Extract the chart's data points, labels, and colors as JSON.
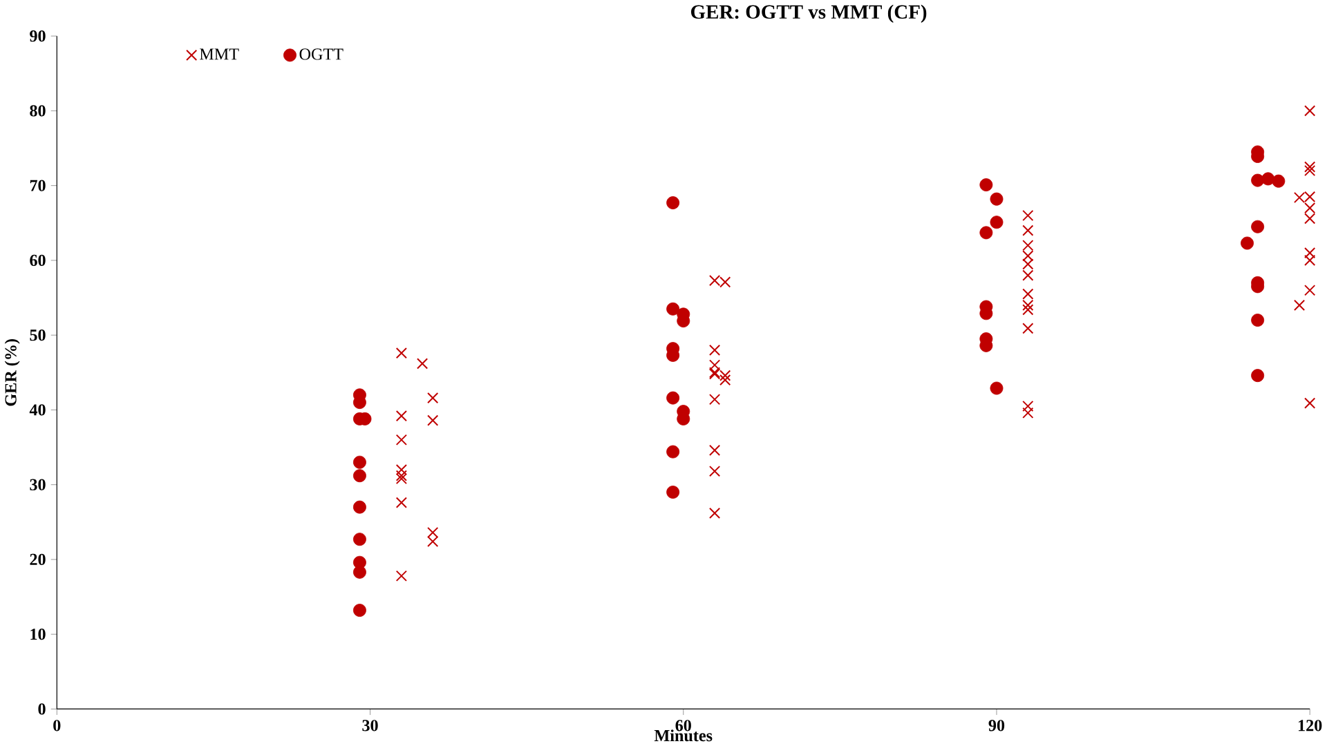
{
  "chart_data": {
    "type": "scatter",
    "title": "GER: OGTT vs MMT (CF)",
    "xlabel": "Minutes",
    "ylabel": "GER (%)",
    "xlim": [
      0,
      120
    ],
    "ylim": [
      0,
      90
    ],
    "xticks": [
      0,
      30,
      60,
      90,
      120
    ],
    "yticks": [
      0,
      10,
      20,
      30,
      40,
      50,
      60,
      70,
      80,
      90
    ],
    "legend": "top left",
    "grid": false,
    "series": [
      {
        "name": "MMT",
        "color": "#c00000",
        "marker": "cross",
        "x": [
          33,
          33,
          33,
          33,
          33,
          33,
          33,
          33,
          35,
          36,
          36,
          36,
          36,
          63,
          63,
          63,
          63,
          63,
          63,
          63,
          63,
          63,
          64,
          64,
          64,
          93,
          93,
          93,
          93,
          93,
          93,
          93,
          93,
          93,
          93,
          93,
          93,
          119,
          119,
          120,
          120,
          120,
          120,
          120,
          120,
          120,
          120,
          120,
          120
        ],
        "values": [
          47.6,
          39.2,
          36,
          32,
          31.2,
          30.8,
          27.6,
          17.8,
          46.2,
          41.6,
          38.6,
          23.6,
          22.4,
          57.3,
          48,
          46,
          45,
          44.8,
          41.4,
          34.6,
          31.8,
          26.2,
          57.1,
          44.6,
          44,
          66,
          64,
          62,
          60.6,
          59.5,
          58,
          55.5,
          54,
          53.4,
          50.9,
          40.5,
          39.6,
          68.4,
          54,
          80,
          72.5,
          72,
          68.5,
          67,
          65.6,
          61,
          60,
          56,
          40.9
        ]
      },
      {
        "name": "OGTT",
        "color": "#c00000",
        "marker": "circle",
        "x": [
          29,
          29,
          29,
          29.5,
          29,
          29,
          29,
          29,
          29,
          29,
          29,
          59,
          59,
          59,
          59,
          59,
          59,
          59,
          60,
          60,
          60,
          60,
          89,
          89,
          89,
          89,
          89,
          89,
          90,
          90,
          90,
          114,
          115,
          115,
          115,
          115,
          115,
          115,
          115,
          115,
          116,
          117
        ],
        "values": [
          42,
          41,
          38.8,
          38.8,
          33,
          31.2,
          27,
          22.7,
          19.6,
          18.3,
          13.2,
          67.7,
          53.5,
          48.2,
          47.3,
          41.6,
          34.4,
          29,
          52.8,
          51.9,
          39.8,
          38.8,
          70.1,
          63.7,
          53.8,
          52.9,
          49.5,
          48.6,
          68.2,
          65.1,
          42.9,
          62.3,
          74.5,
          73.9,
          70.7,
          64.5,
          57,
          56.5,
          52,
          44.6,
          70.9,
          70.6
        ]
      }
    ]
  }
}
